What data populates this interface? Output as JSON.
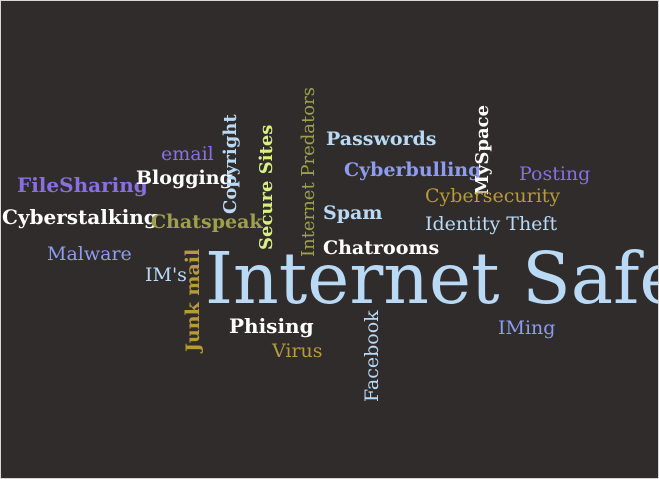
{
  "words": {
    "main": "Internet Safety",
    "filesharing": "FileSharing",
    "cyberstalking": "Cyberstalking",
    "malware": "Malware",
    "email": "email",
    "blogging": "Blogging",
    "chatspeak": "Chatspeak",
    "copyright": "Copyright",
    "secure_sites": "Secure Sites",
    "internet_predators": "Internet Predators",
    "ims": "IM's",
    "junk_mail": "Junk mail",
    "passwords": "Passwords",
    "cyberbulling": "Cyberbulling",
    "myspace": "MySpace",
    "posting": "Posting",
    "cybersecurity": "Cybersecurity",
    "spam": "Spam",
    "identity_theft": "Identity Theft",
    "chatrooms": "Chatrooms",
    "phising": "Phising",
    "virus": "Virus",
    "facebook": "Facebook",
    "iming": "IMing"
  },
  "colors": {
    "background": "#2f2c2b",
    "light_blue": "#b9d9f5",
    "purple": "#8a6fe0",
    "white": "#ffffff",
    "olive": "#9ea04e",
    "gold": "#b79a3a",
    "lime": "#d9ee85",
    "slate_blue": "#8e9cf0"
  }
}
